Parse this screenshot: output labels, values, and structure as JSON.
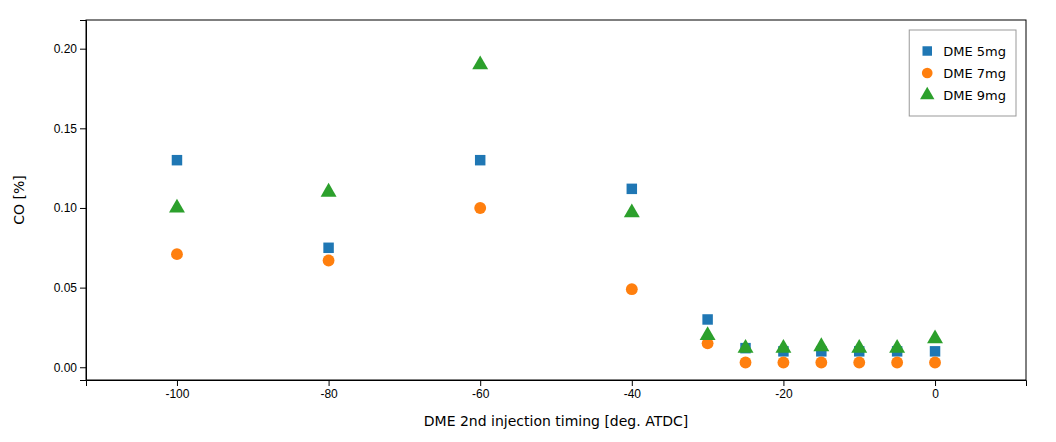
{
  "chart_data": {
    "type": "scatter",
    "xlabel": "DME 2nd injection timing [deg. ATDC]",
    "ylabel": "CO [%]",
    "x": [
      -100,
      -80,
      -60,
      -40,
      -30,
      -25,
      -20,
      -15,
      -10,
      -5,
      0
    ],
    "series": [
      {
        "name": "DME 5mg",
        "marker": "square",
        "values": [
          0.13,
          0.075,
          0.13,
          0.112,
          0.03,
          0.012,
          0.01,
          0.01,
          0.01,
          0.01,
          0.01
        ]
      },
      {
        "name": "DME 7mg",
        "marker": "circle",
        "values": [
          0.071,
          0.067,
          0.1,
          0.049,
          0.015,
          0.003,
          0.003,
          0.003,
          0.003,
          0.003,
          0.003
        ]
      },
      {
        "name": "DME 9mg",
        "marker": "triangle",
        "values": [
          0.1,
          0.11,
          0.19,
          0.097,
          0.02,
          0.012,
          0.012,
          0.013,
          0.012,
          0.012,
          0.018
        ]
      }
    ],
    "xlim": [
      -112,
      12
    ],
    "ylim": [
      -0.008,
      0.218
    ],
    "xticks": [
      -100,
      -80,
      -60,
      -40,
      -20,
      0
    ],
    "yticks": [
      {
        "value": 0.0,
        "label": "0.00"
      },
      {
        "value": 0.05,
        "label": "0.05"
      },
      {
        "value": 0.1,
        "label": "0.10"
      },
      {
        "value": 0.15,
        "label": "0.15"
      },
      {
        "value": 0.2,
        "label": "0.20"
      }
    ],
    "grid": false,
    "legend": "upper right"
  }
}
